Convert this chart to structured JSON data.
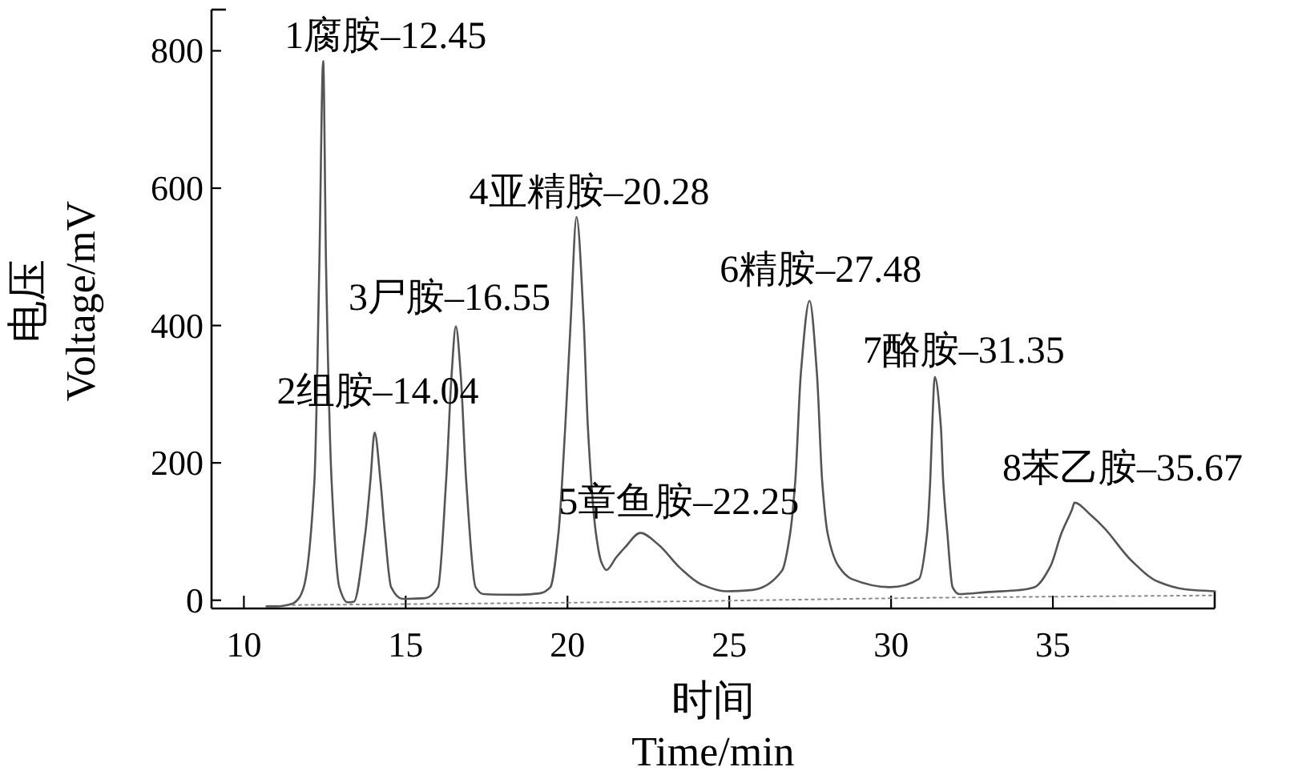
{
  "chart_data": {
    "type": "line",
    "xlabel": "时间\nTime/min",
    "ylabel": "电压\nVoltage/mV",
    "xlim": [
      9,
      40
    ],
    "ylim": [
      -12,
      860
    ],
    "xticks": [
      10,
      15,
      20,
      25,
      30,
      35
    ],
    "yticks": [
      0,
      200,
      400,
      600,
      800
    ],
    "series": [
      {
        "color": "#555555",
        "line_style": "solid",
        "x": [
          10.7,
          11.0,
          11.5,
          11.7,
          11.85,
          12.18,
          12.33,
          12.45,
          12.54,
          12.71,
          12.95,
          13.2,
          13.4,
          13.75,
          13.91,
          14.04,
          14.22,
          14.36,
          14.55,
          14.9,
          15.6,
          16.0,
          16.25,
          16.42,
          16.55,
          16.7,
          16.87,
          17.16,
          17.4,
          18.5,
          19.14,
          19.47,
          19.72,
          19.93,
          20.1,
          20.28,
          20.5,
          20.63,
          20.88,
          21.05,
          21.2,
          21.5,
          21.78,
          22.25,
          22.81,
          23.48,
          24.14,
          24.89,
          25.72,
          26.63,
          26.88,
          27.04,
          27.21,
          27.48,
          27.71,
          27.87,
          28.04,
          28.37,
          28.78,
          29.95,
          30.86,
          31.11,
          31.21,
          31.27,
          31.35,
          31.54,
          31.61,
          31.74,
          31.9,
          32.1,
          33.0,
          34.0,
          34.43,
          34.93,
          35.26,
          35.59,
          35.67,
          36.17,
          36.59,
          37.42,
          38.25,
          39.08,
          40
        ],
        "values": [
          -9,
          -9,
          -5,
          3,
          19,
          174,
          484,
          785,
          484,
          174,
          19,
          -3,
          -2,
          97,
          174,
          244,
          174,
          97,
          19,
          2,
          3,
          19,
          174,
          329,
          399,
          329,
          174,
          19,
          9,
          8,
          10,
          19,
          97,
          252,
          407,
          558,
          407,
          252,
          97,
          55,
          44,
          62,
          77,
          98,
          81,
          47,
          23,
          13,
          15,
          43,
          97,
          174,
          329,
          436,
          329,
          174,
          97,
          50,
          31,
          19,
          31,
          97,
          174,
          252,
          325,
          252,
          174,
          97,
          19,
          9,
          12,
          15,
          19,
          50,
          97,
          132,
          142,
          124,
          105,
          58,
          27,
          16,
          13
        ]
      },
      {
        "color": "#8c8c8c",
        "line_style": "dotted",
        "x": [
          11.5,
          21.2,
          32.1,
          40
        ],
        "values": [
          -7,
          -3,
          4,
          7
        ]
      }
    ],
    "annotations": [
      {
        "text": "1腐胺–12.45",
        "x": 12.45,
        "y": 785
      },
      {
        "text": "2组胺–14.04",
        "x": 14.04,
        "y": 244
      },
      {
        "text": "3尸胺–16.55",
        "x": 16.55,
        "y": 399
      },
      {
        "text": "4亚精胺–20.28",
        "x": 20.28,
        "y": 558
      },
      {
        "text": "5章鱼胺–22.25",
        "x": 22.25,
        "y": 98
      },
      {
        "text": "6精胺–27.48",
        "x": 27.48,
        "y": 436
      },
      {
        "text": "7酪胺–31.35",
        "x": 31.35,
        "y": 325
      },
      {
        "text": "8苯乙胺–35.67",
        "x": 35.67,
        "y": 142
      }
    ]
  }
}
